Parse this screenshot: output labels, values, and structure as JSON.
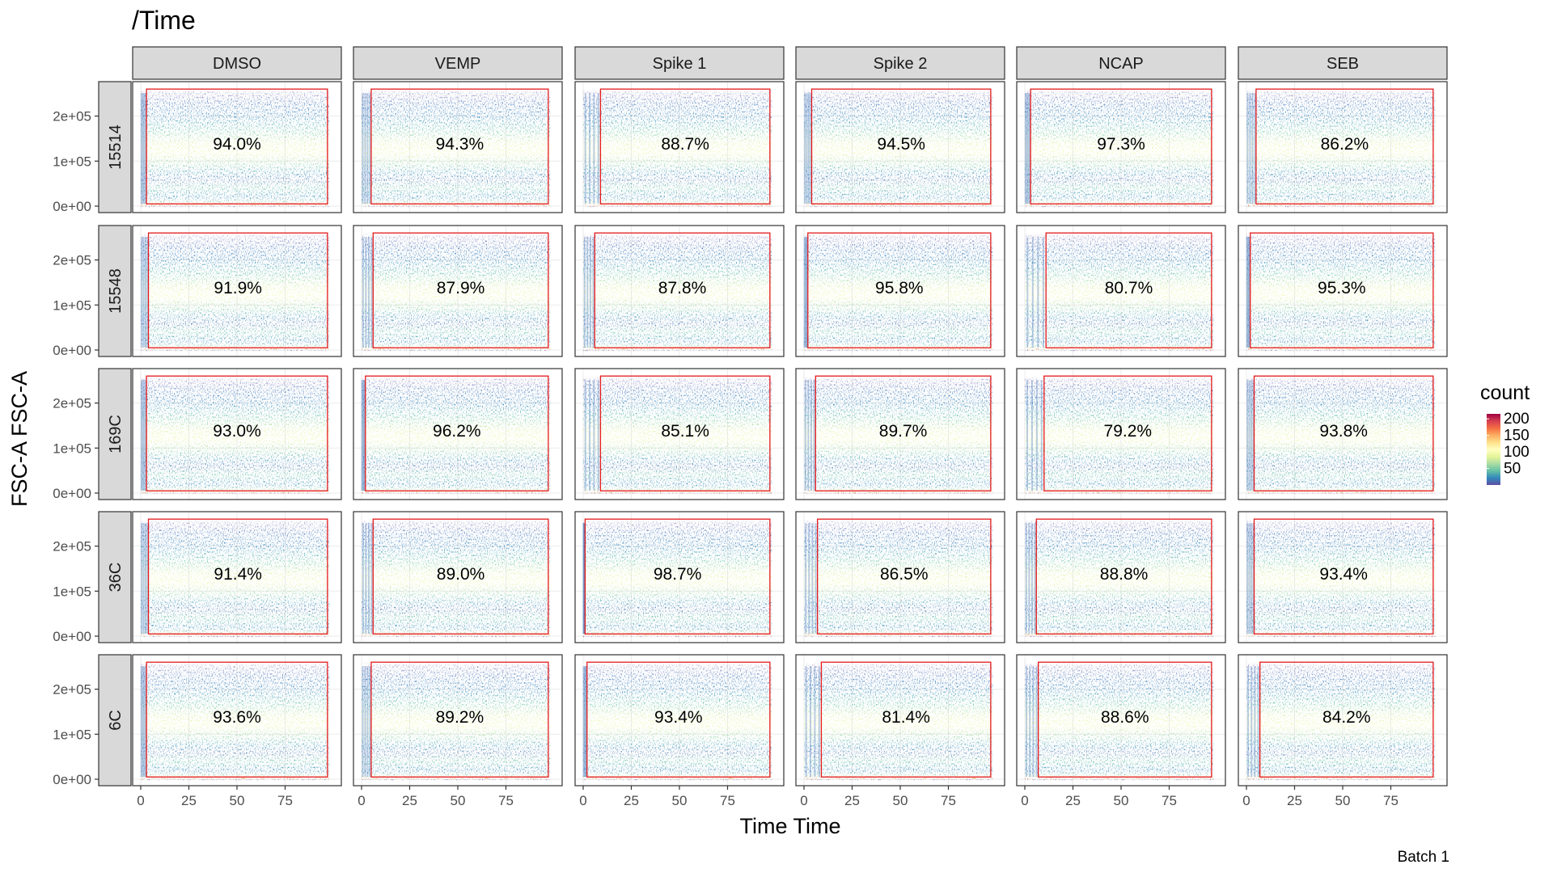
{
  "chart_data": {
    "type": "heatmap",
    "title": "/Time",
    "xlabel": "Time Time",
    "ylabel": "FSC-A FSC-A",
    "caption": "Batch 1",
    "columns": [
      "DMSO",
      "VEMP",
      "Spike 1",
      "Spike 2",
      "NCAP",
      "SEB"
    ],
    "rows": [
      "15514",
      "15548",
      "169C",
      "36C",
      "6C"
    ],
    "x_ticks": [
      "0",
      "25",
      "50",
      "75"
    ],
    "x_tick_values": [
      0,
      25,
      50,
      75
    ],
    "xlim": [
      0,
      100
    ],
    "y_ticks": [
      "0e+00",
      "1e+05",
      "2e+05"
    ],
    "y_tick_values": [
      0,
      100000,
      200000
    ],
    "ylim": [
      0,
      262144
    ],
    "percentages": [
      [
        "94.0%",
        "94.3%",
        "88.7%",
        "94.5%",
        "97.3%",
        "86.2%"
      ],
      [
        "91.9%",
        "87.9%",
        "87.8%",
        "95.8%",
        "80.7%",
        "95.3%"
      ],
      [
        "93.0%",
        "96.2%",
        "85.1%",
        "89.7%",
        "79.2%",
        "93.8%"
      ],
      [
        "91.4%",
        "89.0%",
        "98.7%",
        "86.5%",
        "88.8%",
        "93.4%"
      ],
      [
        "93.6%",
        "89.2%",
        "93.4%",
        "81.4%",
        "88.6%",
        "84.2%"
      ]
    ],
    "gate_x_start": [
      [
        3,
        5,
        9,
        4,
        3,
        5
      ],
      [
        4,
        6,
        6,
        2,
        11,
        2
      ],
      [
        3,
        2,
        9,
        6,
        10,
        4
      ],
      [
        4,
        6,
        1,
        7,
        6,
        4
      ],
      [
        3,
        5,
        2,
        9,
        7,
        7
      ]
    ],
    "gate_x_end": 97,
    "gate_y_range": [
      5000,
      260000
    ],
    "legend": {
      "title": "count",
      "ticks": [
        "50",
        "100",
        "150",
        "200"
      ],
      "tick_values": [
        50,
        100,
        150,
        200
      ],
      "range": [
        0,
        215
      ],
      "colors": [
        "#5e4fa2",
        "#3288bd",
        "#66c2a5",
        "#abdda4",
        "#e6f598",
        "#ffffbf",
        "#fee08b",
        "#fdae61",
        "#f46d43",
        "#d53e4f",
        "#9e0142"
      ]
    },
    "gate_color": "#e41a1c",
    "strip_fill": "#d9d9d9",
    "legend_placement": "right",
    "grid": true
  }
}
